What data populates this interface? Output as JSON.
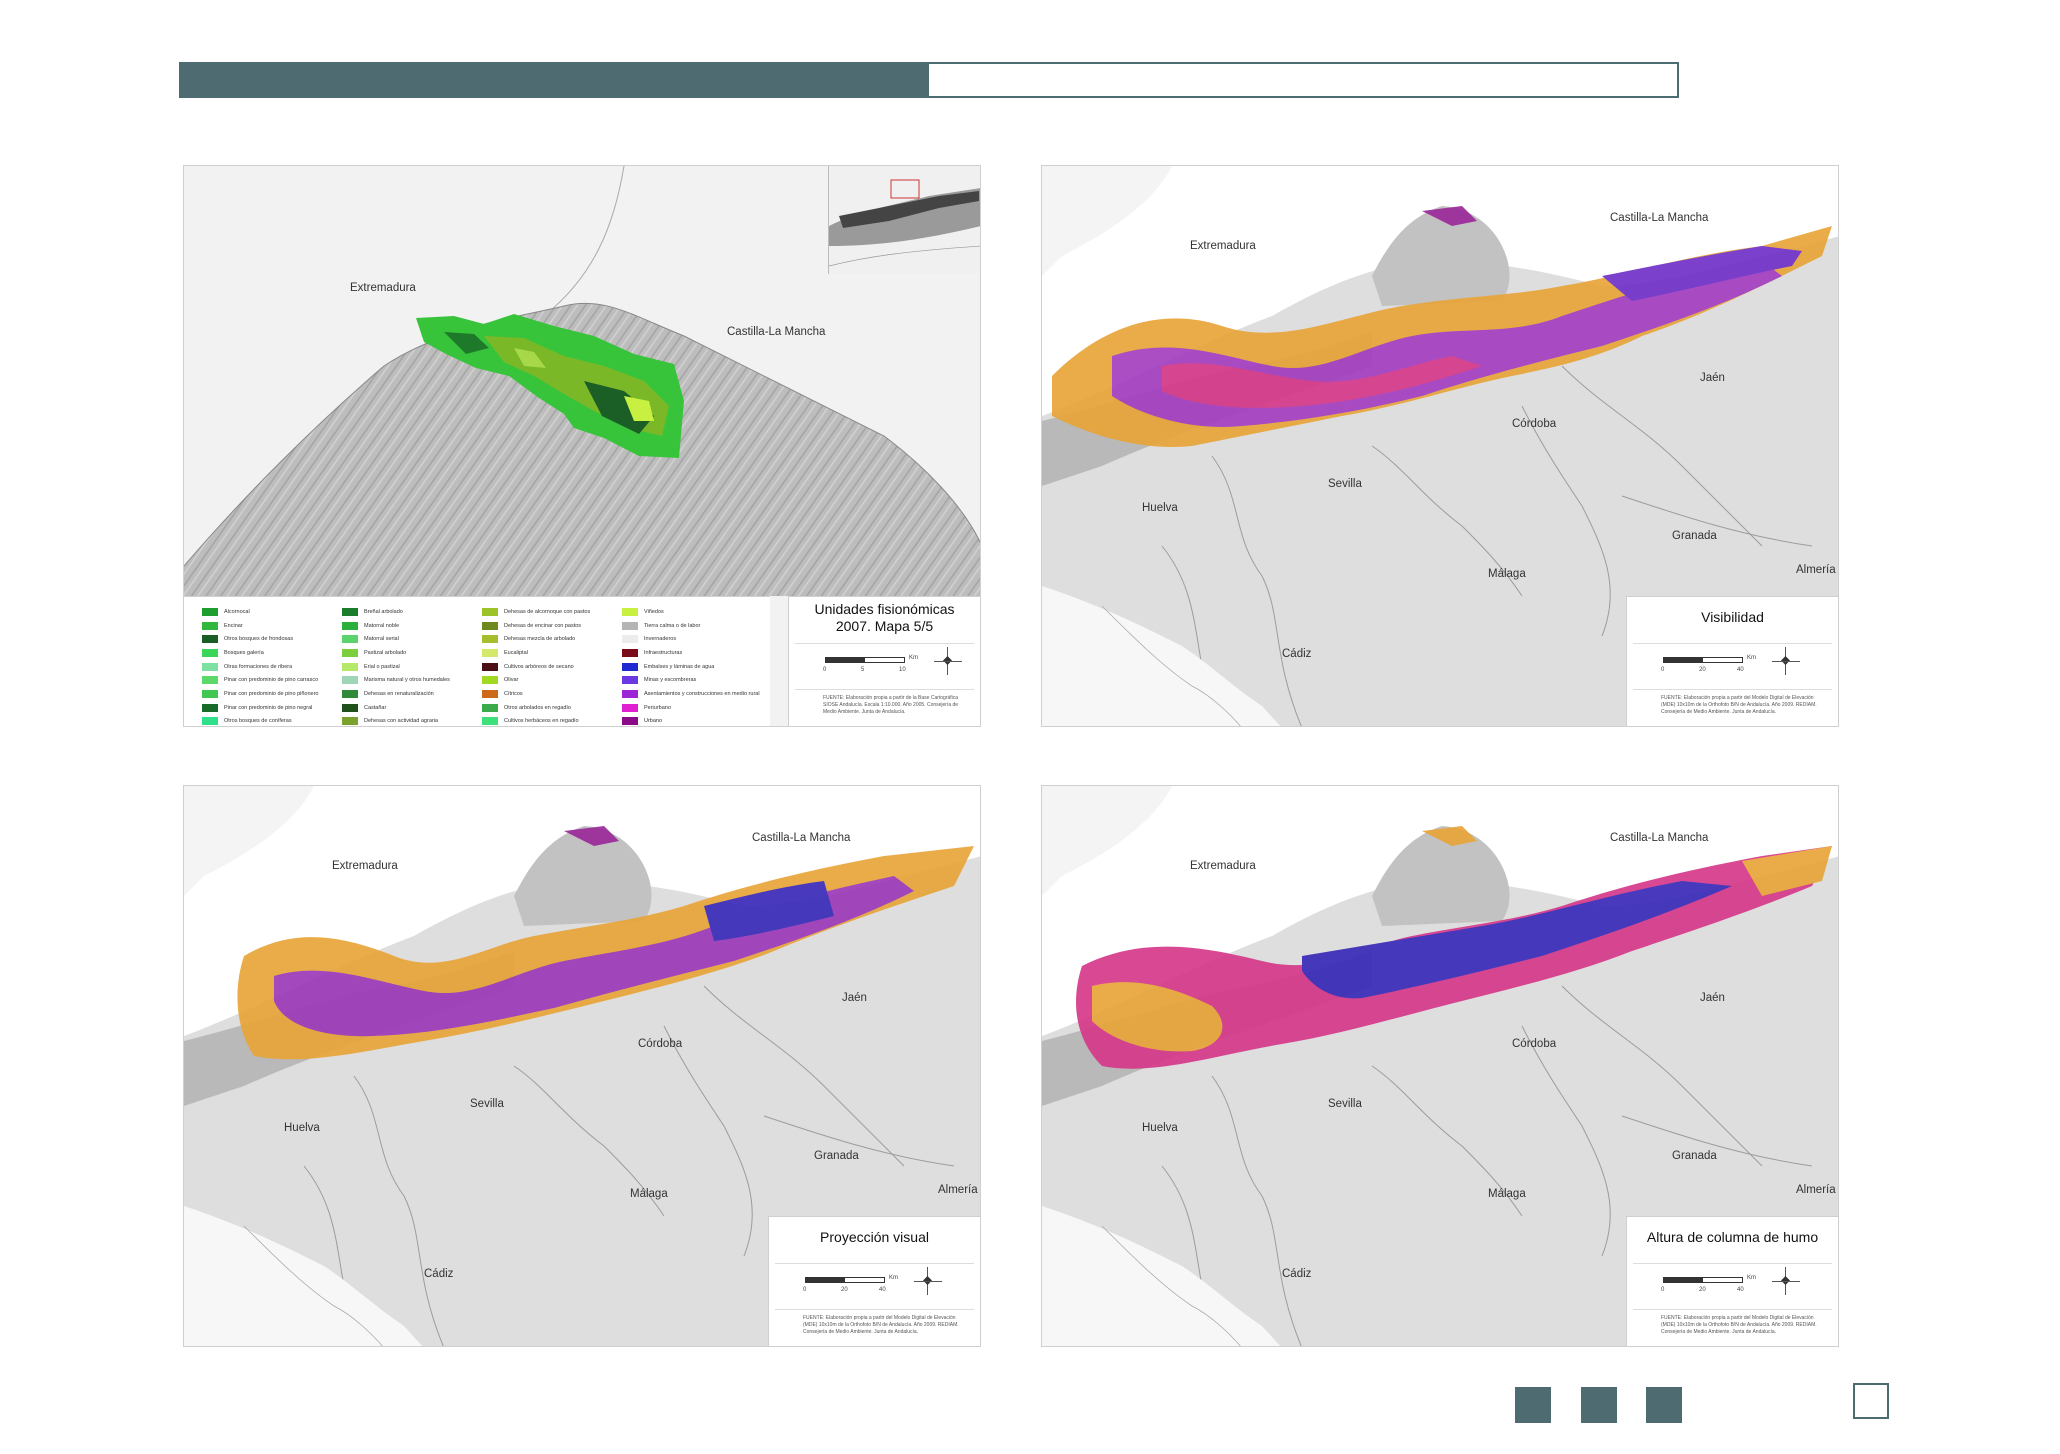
{
  "colors": {
    "accent": "#4d6b70",
    "progress_fraction": 0.5
  },
  "panels": {
    "p1": {
      "title_line1": "Unidades fisionómicas",
      "title_line2": "2007. Mapa 5/5",
      "places": {
        "extremadura": "Extremadura",
        "castilla": "Castilla-La Mancha"
      },
      "scale": {
        "s0": "0",
        "s1": "5",
        "s2": "10",
        "unit": "Km"
      },
      "source": "FUENTE: Elaboración propia a partir de la Base Cartográfica SIOSE Andalucía. Escala 1:10.000. Año 2005. Consejería de Medio Ambiente. Junta de Andalucía."
    },
    "p2": {
      "title": "Visibilidad",
      "places": {
        "extremadura": "Extremadura",
        "castilla": "Castilla-La Mancha",
        "jaen": "Jaén",
        "cordoba": "Córdoba",
        "sevilla": "Sevilla",
        "huelva": "Huelva",
        "granada": "Granada",
        "almeria": "Almería",
        "malaga": "Málaga",
        "cadiz": "Cádiz"
      },
      "scale": {
        "s0": "0",
        "s1": "20",
        "s2": "40",
        "unit": "Km"
      },
      "source": "FUENTE: Elaboración propia a partir del Modelo Digital de Elevación (MDE) 10x10m de la Orthofoto B/N de Andalucía. Año 2009. REDIAM. Consejería de Medio Ambiente. Junta de Andalucía."
    },
    "p3": {
      "title": "Proyección visual",
      "places": {
        "extremadura": "Extremadura",
        "castilla": "Castilla-La Mancha",
        "jaen": "Jaén",
        "cordoba": "Córdoba",
        "sevilla": "Sevilla",
        "huelva": "Huelva",
        "granada": "Granada",
        "almeria": "Almería",
        "malaga": "Málaga",
        "cadiz": "Cádiz"
      },
      "scale": {
        "s0": "0",
        "s1": "20",
        "s2": "40",
        "unit": "Km"
      },
      "source": "FUENTE: Elaboración propia a partir del Modelo Digital de Elevación (MDE) 10x10m de la Orthofoto B/N de Andalucía. Año 2009. REDIAM. Consejería de Medio Ambiente. Junta de Andalucía."
    },
    "p4": {
      "title": "Altura de columna de humo",
      "places": {
        "extremadura": "Extremadura",
        "castilla": "Castilla-La Mancha",
        "jaen": "Jaén",
        "cordoba": "Córdoba",
        "sevilla": "Sevilla",
        "huelva": "Huelva",
        "granada": "Granada",
        "almeria": "Almería",
        "malaga": "Málaga",
        "cadiz": "Cádiz"
      },
      "scale": {
        "s0": "0",
        "s1": "20",
        "s2": "40",
        "unit": "Km"
      },
      "source": "FUENTE: Elaboración propia a partir del Modelo Digital de Elevación (MDE) 10x10m de la Orthofoto B/N de Andalucía. Año 2009. REDIAM. Consejería de Medio Ambiente. Junta de Andalucía."
    }
  },
  "legend": [
    {
      "label": "Alcornocal",
      "color": "#1e9e2e"
    },
    {
      "label": "Encinar",
      "color": "#2fb83c"
    },
    {
      "label": "Otros bosques de frondosas",
      "color": "#1a5e26"
    },
    {
      "label": "Bosques galería",
      "color": "#3ad65a"
    },
    {
      "label": "Otras formaciones de ribera",
      "color": "#7fe0a4"
    },
    {
      "label": "Pinar con predominio de pino carrasco",
      "color": "#5fd86a"
    },
    {
      "label": "Pinar con predominio de pino piñonero",
      "color": "#42c850"
    },
    {
      "label": "Pinar con predominio de pino negral",
      "color": "#176a2a"
    },
    {
      "label": "Otros bosques de coníferas",
      "color": "#2fe08a"
    },
    {
      "label": "Breñal arbolado",
      "color": "#1b7d2c"
    },
    {
      "label": "Matorral noble",
      "color": "#28b03a"
    },
    {
      "label": "Matorral serial",
      "color": "#58d46a"
    },
    {
      "label": "Pastizal arbolado",
      "color": "#7ccf3c"
    },
    {
      "label": "Erial o pastizal",
      "color": "#b6e86a"
    },
    {
      "label": "Marisma natural y otros humedales",
      "color": "#9fd4b4"
    },
    {
      "label": "Dehesas en renaturalización",
      "color": "#2e8a3a"
    },
    {
      "label": "Castañar",
      "color": "#1f4f1a"
    },
    {
      "label": "Dehesas con actividad agraria",
      "color": "#7aa22a"
    },
    {
      "label": "Dehesas de alcornoque con pastos",
      "color": "#9cc428"
    },
    {
      "label": "Dehesas de encinar con pastos",
      "color": "#6e8a1e"
    },
    {
      "label": "Dehesas mezcla de arbolado",
      "color": "#a6be2c"
    },
    {
      "label": "Eucaliptal",
      "color": "#d4e86a"
    },
    {
      "label": "Cultivos arbóreos de secano",
      "color": "#4a0e14"
    },
    {
      "label": "Olivar",
      "color": "#a0d822"
    },
    {
      "label": "Cítricos",
      "color": "#cc6a1a"
    },
    {
      "label": "Otros arbolados en regadío",
      "color": "#3aaa4a"
    },
    {
      "label": "Cultivos herbáceos en regadío",
      "color": "#3ee07a"
    },
    {
      "label": "Viñedos",
      "color": "#c8f040"
    },
    {
      "label": "Tierra calma o de labor",
      "color": "#b4b4b4"
    },
    {
      "label": "Invernaderos",
      "color": "#ececec"
    },
    {
      "label": "Infraestructuras",
      "color": "#7a0c1a"
    },
    {
      "label": "Embalses y láminas de agua",
      "color": "#1c2ad0"
    },
    {
      "label": "Minas y escombreras",
      "color": "#6a3ae0"
    },
    {
      "label": "Asentamientos y construcciones en medio rural",
      "color": "#9a26d8"
    },
    {
      "label": "Periurbano",
      "color": "#e020d0"
    },
    {
      "label": "Urbano",
      "color": "#8a0a8a"
    }
  ]
}
